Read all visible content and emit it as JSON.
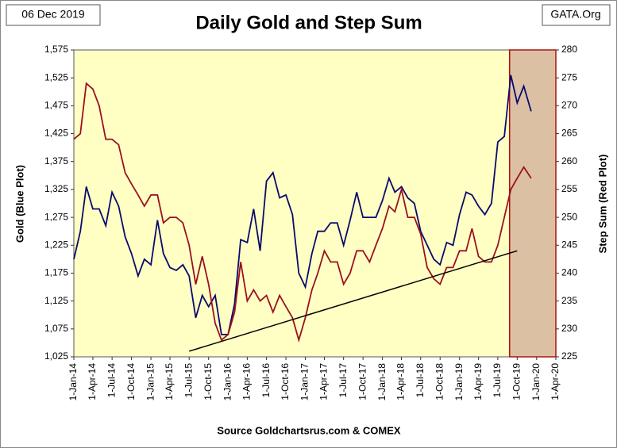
{
  "chart_data": {
    "type": "line",
    "title": "Daily Gold and Step Sum",
    "date_label": "06 Dec 2019",
    "brand": "GATA.Org",
    "source": "Source Goldchartsrus.com & COMEX",
    "ylabel": "Gold   (Blue Plot)",
    "y2label": "Step Sum   (Red Plot)",
    "xlim": [
      "2014-01-01",
      "2020-04-01"
    ],
    "xticks": [
      {
        "value": "2014-01-01",
        "label": "1-Jan-14"
      },
      {
        "value": "2014-04-01",
        "label": "1-Apr-14"
      },
      {
        "value": "2014-07-01",
        "label": "1-Jul-14"
      },
      {
        "value": "2014-10-01",
        "label": "1-Oct-14"
      },
      {
        "value": "2015-01-01",
        "label": "1-Jan-15"
      },
      {
        "value": "2015-04-01",
        "label": "1-Apr-15"
      },
      {
        "value": "2015-07-01",
        "label": "1-Jul-15"
      },
      {
        "value": "2015-10-01",
        "label": "1-Oct-15"
      },
      {
        "value": "2016-01-01",
        "label": "1-Jan-16"
      },
      {
        "value": "2016-04-01",
        "label": "1-Apr-16"
      },
      {
        "value": "2016-07-01",
        "label": "1-Jul-16"
      },
      {
        "value": "2016-10-01",
        "label": "1-Oct-16"
      },
      {
        "value": "2017-01-01",
        "label": "1-Jan-17"
      },
      {
        "value": "2017-04-01",
        "label": "1-Apr-17"
      },
      {
        "value": "2017-07-01",
        "label": "1-Jul-17"
      },
      {
        "value": "2017-10-01",
        "label": "1-Oct-17"
      },
      {
        "value": "2018-01-01",
        "label": "1-Jan-18"
      },
      {
        "value": "2018-04-01",
        "label": "1-Apr-18"
      },
      {
        "value": "2018-07-01",
        "label": "1-Jul-18"
      },
      {
        "value": "2018-10-01",
        "label": "1-Oct-18"
      },
      {
        "value": "2019-01-01",
        "label": "1-Jan-19"
      },
      {
        "value": "2019-04-01",
        "label": "1-Apr-19"
      },
      {
        "value": "2019-07-01",
        "label": "1-Jul-19"
      },
      {
        "value": "2019-10-01",
        "label": "1-Oct-19"
      },
      {
        "value": "2020-01-01",
        "label": "1-Jan-20"
      },
      {
        "value": "2020-04-01",
        "label": "1-Apr-20"
      }
    ],
    "ylim": [
      1025,
      1575
    ],
    "yticks": [
      {
        "value": 1025,
        "label": "1,025"
      },
      {
        "value": 1075,
        "label": "1,075"
      },
      {
        "value": 1125,
        "label": "1,125"
      },
      {
        "value": 1175,
        "label": "1,175"
      },
      {
        "value": 1225,
        "label": "1,225"
      },
      {
        "value": 1275,
        "label": "1,275"
      },
      {
        "value": 1325,
        "label": "1,325"
      },
      {
        "value": 1375,
        "label": "1,375"
      },
      {
        "value": 1425,
        "label": "1,425"
      },
      {
        "value": 1475,
        "label": "1,475"
      },
      {
        "value": 1525,
        "label": "1,525"
      },
      {
        "value": 1575,
        "label": "1,575"
      }
    ],
    "y2lim": [
      225,
      280
    ],
    "y2ticks": [
      225,
      230,
      235,
      240,
      245,
      250,
      255,
      260,
      265,
      270,
      275,
      280
    ],
    "x": [
      "2014-01-01",
      "2014-02-01",
      "2014-03-01",
      "2014-04-01",
      "2014-05-01",
      "2014-06-01",
      "2014-07-01",
      "2014-08-01",
      "2014-09-01",
      "2014-10-01",
      "2014-11-01",
      "2014-12-01",
      "2015-01-01",
      "2015-02-01",
      "2015-03-01",
      "2015-04-01",
      "2015-05-01",
      "2015-06-01",
      "2015-07-01",
      "2015-08-01",
      "2015-09-01",
      "2015-10-01",
      "2015-11-01",
      "2015-12-01",
      "2016-01-01",
      "2016-02-01",
      "2016-03-01",
      "2016-04-01",
      "2016-05-01",
      "2016-06-01",
      "2016-07-01",
      "2016-08-01",
      "2016-09-01",
      "2016-10-01",
      "2016-11-01",
      "2016-12-01",
      "2017-01-01",
      "2017-02-01",
      "2017-03-01",
      "2017-04-01",
      "2017-05-01",
      "2017-06-01",
      "2017-07-01",
      "2017-08-01",
      "2017-09-01",
      "2017-10-01",
      "2017-11-01",
      "2017-12-01",
      "2018-01-01",
      "2018-02-01",
      "2018-03-01",
      "2018-04-01",
      "2018-05-01",
      "2018-06-01",
      "2018-07-01",
      "2018-08-01",
      "2018-09-01",
      "2018-10-01",
      "2018-11-01",
      "2018-12-01",
      "2019-01-01",
      "2019-02-01",
      "2019-03-01",
      "2019-04-01",
      "2019-05-01",
      "2019-06-01",
      "2019-07-01",
      "2019-08-01",
      "2019-09-01",
      "2019-10-01",
      "2019-11-01",
      "2019-12-06"
    ],
    "series": [
      {
        "name": "Gold",
        "color": "#0a0a6e",
        "axis": "y",
        "values": [
          1200,
          1250,
          1330,
          1290,
          1290,
          1260,
          1320,
          1295,
          1240,
          1210,
          1170,
          1200,
          1190,
          1270,
          1210,
          1185,
          1180,
          1190,
          1170,
          1095,
          1135,
          1115,
          1135,
          1065,
          1065,
          1120,
          1235,
          1230,
          1290,
          1215,
          1340,
          1355,
          1310,
          1315,
          1280,
          1175,
          1150,
          1210,
          1250,
          1250,
          1265,
          1265,
          1225,
          1270,
          1320,
          1275,
          1275,
          1275,
          1305,
          1345,
          1320,
          1330,
          1310,
          1300,
          1250,
          1225,
          1200,
          1190,
          1230,
          1225,
          1280,
          1320,
          1315,
          1295,
          1280,
          1300,
          1410,
          1420,
          1530,
          1480,
          1510,
          1465
        ]
      },
      {
        "name": "Step Sum",
        "color": "#9a1020",
        "axis": "y2",
        "values": [
          264,
          265,
          274,
          273,
          270,
          264,
          264,
          263,
          258,
          256,
          254,
          252,
          254,
          254,
          249,
          250,
          250,
          249,
          245,
          238,
          243,
          238,
          231,
          228,
          229,
          233,
          242,
          235,
          237,
          235,
          236,
          233,
          236,
          234,
          232,
          228,
          232,
          237,
          240,
          244,
          242,
          242,
          238,
          240,
          244,
          244,
          242,
          245,
          248,
          252,
          251,
          255,
          250,
          250,
          247,
          241,
          239,
          238,
          241,
          241,
          244,
          244,
          248,
          243,
          242,
          242,
          245,
          250,
          255,
          257,
          259,
          257
        ]
      }
    ],
    "trendline": {
      "x": [
        "2015-07-01",
        "2019-10-01"
      ],
      "y": [
        1035,
        1215
      ],
      "color": "#000000"
    },
    "highlight": {
      "x": [
        "2019-08-26",
        "2020-04-01"
      ],
      "color": "#dcc0a4",
      "edge": "#b01010"
    },
    "background": "#ffffc4"
  }
}
